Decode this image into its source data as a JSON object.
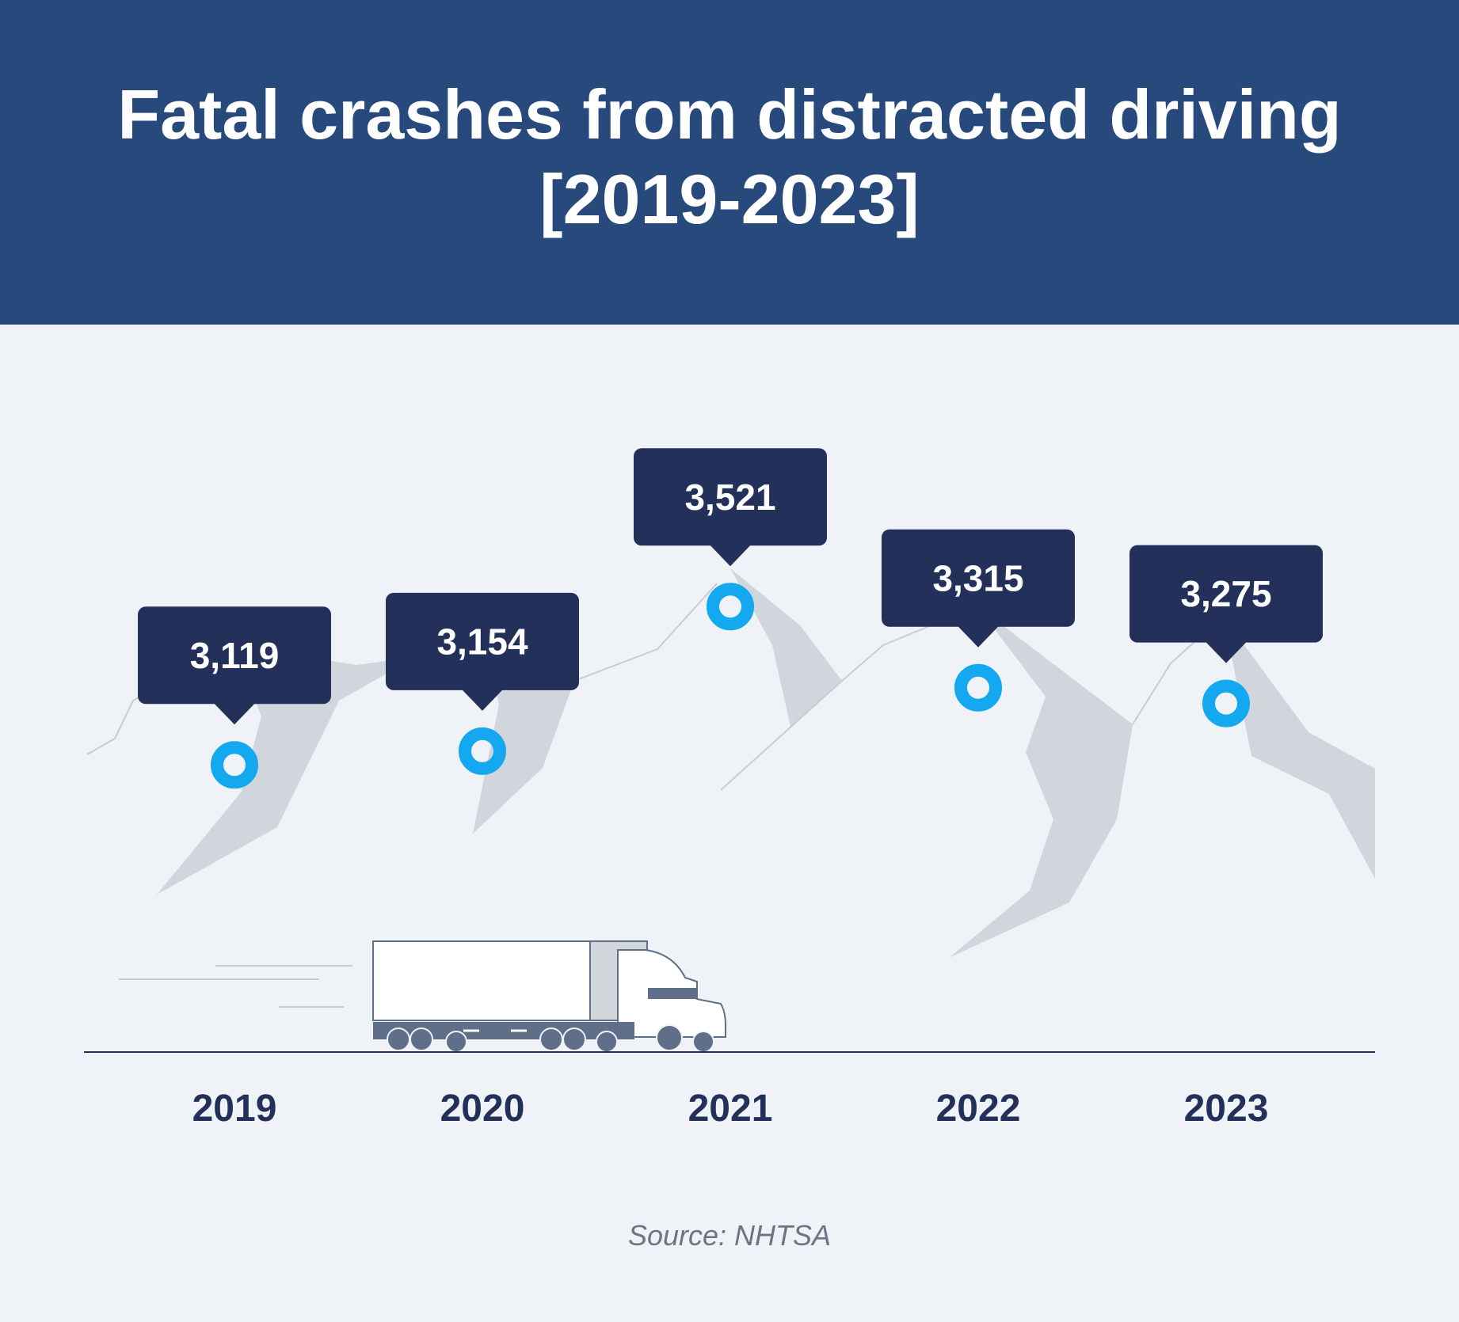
{
  "title_line1": "Fatal crashes from distracted driving",
  "title_line2": "[2019-2023]",
  "source": "Source: NHTSA",
  "colors": {
    "header_bg": "#27497c",
    "page_bg": "#eff2f7",
    "label_box": "#23305a",
    "marker": "#13a8ef",
    "mountain": "#d1d5dc",
    "ridge_line": "#c9ccd3",
    "axis_text": "#23305a",
    "truck_base": "#5f6f89"
  },
  "chart_data": {
    "type": "line",
    "title": "Fatal crashes from distracted driving [2019-2023]",
    "categories": [
      "2019",
      "2020",
      "2021",
      "2022",
      "2023"
    ],
    "values": [
      3119,
      3154,
      3521,
      3315,
      3275
    ],
    "value_labels": [
      "3,119",
      "3,154",
      "3,521",
      "3,315",
      "3,275"
    ],
    "ylim": [
      2390,
      3620
    ],
    "grid": false,
    "legend": "none"
  }
}
